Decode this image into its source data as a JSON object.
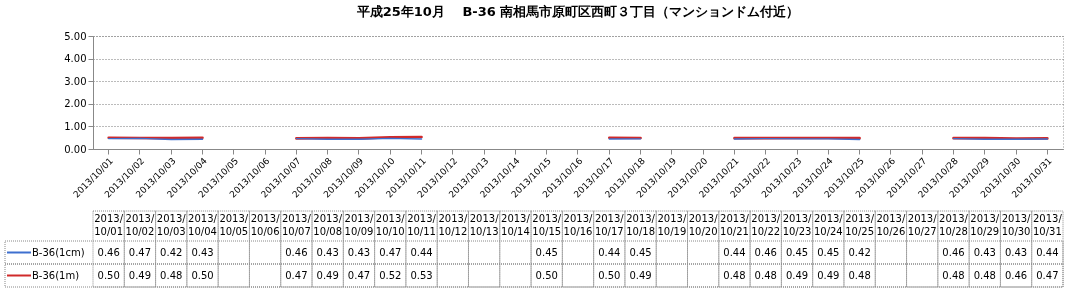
{
  "chart_data": {
    "type": "line",
    "title": "平成25年10月　 B-36 南相馬市原町区西町３丁目（マンションドム付近）",
    "categories": [
      "2013/10/01",
      "2013/10/02",
      "2013/10/03",
      "2013/10/04",
      "2013/10/05",
      "2013/10/06",
      "2013/10/07",
      "2013/10/08",
      "2013/10/09",
      "2013/10/10",
      "2013/10/11",
      "2013/10/12",
      "2013/10/13",
      "2013/10/14",
      "2013/10/15",
      "2013/10/16",
      "2013/10/17",
      "2013/10/18",
      "2013/10/19",
      "2013/10/20",
      "2013/10/21",
      "2013/10/22",
      "2013/10/23",
      "2013/10/24",
      "2013/10/25",
      "2013/10/26",
      "2013/10/27",
      "2013/10/28",
      "2013/10/29",
      "2013/10/30",
      "2013/10/31"
    ],
    "series": [
      {
        "name": "B-36(1cm)",
        "color": "#3d6fcf",
        "values": [
          0.46,
          0.47,
          0.42,
          0.43,
          null,
          null,
          0.46,
          0.43,
          0.43,
          0.47,
          0.44,
          null,
          null,
          null,
          null,
          null,
          0.44,
          0.45,
          null,
          null,
          0.44,
          0.46,
          0.45,
          0.45,
          0.42,
          null,
          null,
          0.46,
          0.43,
          0.43,
          0.44
        ],
        "value_labels": [
          "0.46",
          "0.47",
          "0.42",
          "0.43",
          null,
          null,
          "0.46",
          "0.43",
          "0.43",
          "0.47",
          "0.44",
          null,
          null,
          null,
          "0.45",
          null,
          "0.44",
          "0.45",
          null,
          null,
          "0.44",
          "0.46",
          "0.45",
          "0.45",
          "0.42",
          null,
          null,
          "0.46",
          "0.43",
          "0.43",
          "0.44"
        ]
      },
      {
        "name": "B-36(1m)",
        "color": "#d02a2a",
        "values": [
          0.5,
          0.49,
          0.48,
          0.5,
          null,
          null,
          0.47,
          0.49,
          0.47,
          0.52,
          0.53,
          null,
          null,
          null,
          null,
          null,
          0.5,
          0.49,
          null,
          null,
          0.48,
          0.48,
          0.49,
          0.49,
          0.48,
          null,
          null,
          0.48,
          0.48,
          0.46,
          0.47
        ],
        "value_labels": [
          "0.50",
          "0.49",
          "0.48",
          "0.50",
          null,
          null,
          "0.47",
          "0.49",
          "0.47",
          "0.52",
          "0.53",
          null,
          null,
          null,
          "0.50",
          null,
          "0.50",
          "0.49",
          null,
          null,
          "0.48",
          "0.48",
          "0.49",
          "0.49",
          "0.48",
          null,
          null,
          "0.48",
          "0.48",
          "0.46",
          "0.47"
        ]
      }
    ],
    "ylim": [
      0,
      5
    ],
    "yticks": [
      {
        "value": 0,
        "label": "0.00"
      },
      {
        "value": 1,
        "label": "1.00"
      },
      {
        "value": 2,
        "label": "2.00"
      },
      {
        "value": 3,
        "label": "3.00"
      },
      {
        "value": 4,
        "label": "4.00"
      },
      {
        "value": 5,
        "label": "5.00"
      }
    ],
    "grid": "y",
    "line_style": "solid",
    "marker": "none",
    "legend": "bottom left"
  }
}
